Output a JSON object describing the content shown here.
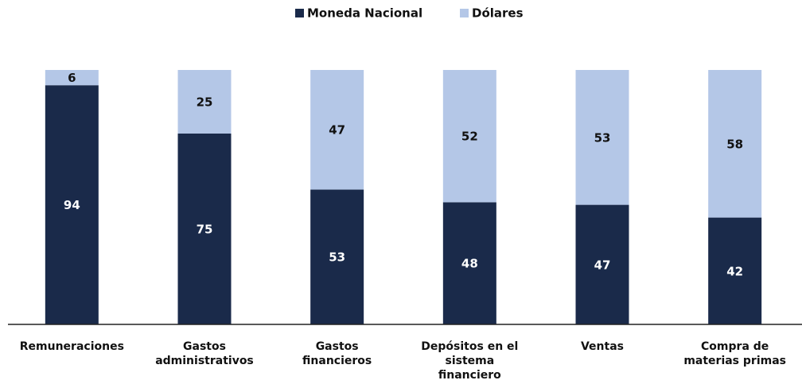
{
  "chart_data": {
    "type": "stacked-bar",
    "categories": [
      "Remuneraciones",
      "Gastos administrativos",
      "Gastos financieros",
      "Depósitos en el sistema financiero",
      "Ventas",
      "Compra de materias primas"
    ],
    "series": [
      {
        "name": "Moneda Nacional",
        "color": "#1a2a4a",
        "values": [
          94,
          75,
          53,
          48,
          47,
          42
        ]
      },
      {
        "name": "Dólares",
        "color": "#b4c7e7",
        "values": [
          6,
          25,
          47,
          52,
          53,
          58
        ]
      }
    ],
    "legend": "top"
  }
}
